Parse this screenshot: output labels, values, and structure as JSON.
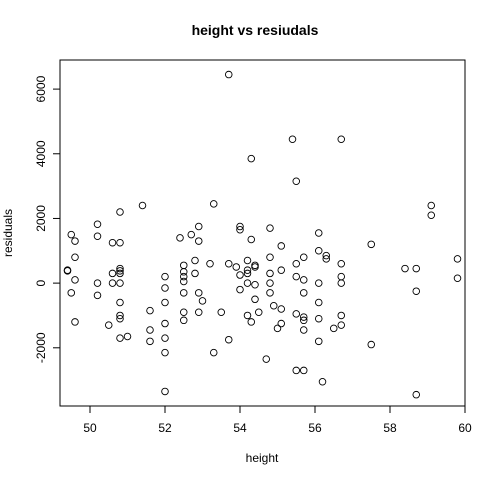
{
  "chart_data": {
    "type": "scatter",
    "title": "height  vs resiudals",
    "xlabel": "height",
    "ylabel": "residuals",
    "xlim": [
      49.2,
      60.0
    ],
    "ylim": [
      -3800,
      6900
    ],
    "xticks": [
      50,
      52,
      54,
      56,
      58,
      60
    ],
    "yticks": [
      -2000,
      0,
      2000,
      4000,
      6000
    ],
    "xtick_labels": [
      "50",
      "52",
      "54",
      "56",
      "58",
      "60"
    ],
    "ytick_labels": [
      "-2000",
      "0",
      "2000",
      "4000",
      "6000"
    ],
    "grid": false,
    "legend": "none",
    "series": [
      {
        "marker": "open-circle",
        "points": [
          [
            49.4,
            400
          ],
          [
            49.4,
            380
          ],
          [
            49.5,
            1500
          ],
          [
            49.5,
            -300
          ],
          [
            49.6,
            1300
          ],
          [
            49.6,
            -1200
          ],
          [
            49.6,
            800
          ],
          [
            49.6,
            100
          ],
          [
            50.2,
            1820
          ],
          [
            50.2,
            1450
          ],
          [
            50.2,
            0
          ],
          [
            50.2,
            -380
          ],
          [
            50.5,
            -1300
          ],
          [
            50.6,
            1250
          ],
          [
            50.6,
            300
          ],
          [
            50.6,
            0
          ],
          [
            50.8,
            2200
          ],
          [
            50.8,
            1250
          ],
          [
            50.8,
            450
          ],
          [
            50.8,
            380
          ],
          [
            50.8,
            300
          ],
          [
            50.8,
            0
          ],
          [
            50.8,
            -600
          ],
          [
            50.8,
            -1000
          ],
          [
            50.8,
            -1100
          ],
          [
            50.8,
            -1700
          ],
          [
            51.0,
            -1650
          ],
          [
            51.4,
            2400
          ],
          [
            51.6,
            -850
          ],
          [
            51.6,
            -1450
          ],
          [
            51.6,
            -1800
          ],
          [
            52.0,
            200
          ],
          [
            52.0,
            -150
          ],
          [
            52.0,
            -600
          ],
          [
            52.0,
            -1250
          ],
          [
            52.0,
            -1700
          ],
          [
            52.0,
            -2150
          ],
          [
            52.0,
            -3350
          ],
          [
            52.4,
            1400
          ],
          [
            52.5,
            550
          ],
          [
            52.5,
            350
          ],
          [
            52.5,
            200
          ],
          [
            52.5,
            50
          ],
          [
            52.5,
            -300
          ],
          [
            52.5,
            -900
          ],
          [
            52.5,
            -1150
          ],
          [
            52.7,
            1500
          ],
          [
            52.8,
            700
          ],
          [
            52.8,
            300
          ],
          [
            52.9,
            1300
          ],
          [
            52.9,
            1750
          ],
          [
            52.9,
            -300
          ],
          [
            52.9,
            -900
          ],
          [
            53.0,
            -550
          ],
          [
            53.2,
            600
          ],
          [
            53.3,
            2450
          ],
          [
            53.3,
            -2150
          ],
          [
            53.5,
            -900
          ],
          [
            53.7,
            6450
          ],
          [
            53.7,
            600
          ],
          [
            53.7,
            -1750
          ],
          [
            53.9,
            500
          ],
          [
            54.0,
            1750
          ],
          [
            54.0,
            1650
          ],
          [
            54.0,
            250
          ],
          [
            54.0,
            -200
          ],
          [
            54.2,
            700
          ],
          [
            54.2,
            400
          ],
          [
            54.2,
            300
          ],
          [
            54.2,
            0
          ],
          [
            54.2,
            -1000
          ],
          [
            54.3,
            1350
          ],
          [
            54.3,
            3850
          ],
          [
            54.3,
            -1200
          ],
          [
            54.4,
            550
          ],
          [
            54.4,
            500
          ],
          [
            54.4,
            -50
          ],
          [
            54.4,
            -500
          ],
          [
            54.5,
            -900
          ],
          [
            54.7,
            -2350
          ],
          [
            54.8,
            1700
          ],
          [
            54.8,
            800
          ],
          [
            54.8,
            300
          ],
          [
            54.8,
            0
          ],
          [
            54.8,
            -300
          ],
          [
            54.9,
            -700
          ],
          [
            55.0,
            -1400
          ],
          [
            55.1,
            1150
          ],
          [
            55.1,
            400
          ],
          [
            55.1,
            -800
          ],
          [
            55.1,
            -1250
          ],
          [
            55.4,
            4450
          ],
          [
            55.5,
            3150
          ],
          [
            55.5,
            600
          ],
          [
            55.5,
            200
          ],
          [
            55.5,
            -950
          ],
          [
            55.5,
            -2700
          ],
          [
            55.7,
            800
          ],
          [
            55.7,
            100
          ],
          [
            55.7,
            -300
          ],
          [
            55.7,
            -1050
          ],
          [
            55.7,
            -1150
          ],
          [
            55.7,
            -1450
          ],
          [
            55.7,
            -2700
          ],
          [
            56.1,
            1550
          ],
          [
            56.1,
            1000
          ],
          [
            56.1,
            0
          ],
          [
            56.1,
            -600
          ],
          [
            56.1,
            -1100
          ],
          [
            56.1,
            -1800
          ],
          [
            56.2,
            -3050
          ],
          [
            56.3,
            850
          ],
          [
            56.3,
            750
          ],
          [
            56.5,
            -1400
          ],
          [
            56.7,
            4450
          ],
          [
            56.7,
            600
          ],
          [
            56.7,
            200
          ],
          [
            56.7,
            0
          ],
          [
            56.7,
            -1000
          ],
          [
            56.7,
            -1300
          ],
          [
            57.5,
            1200
          ],
          [
            57.5,
            -1900
          ],
          [
            58.4,
            450
          ],
          [
            58.7,
            450
          ],
          [
            58.7,
            -250
          ],
          [
            58.7,
            -3450
          ],
          [
            59.1,
            2400
          ],
          [
            59.1,
            2100
          ],
          [
            59.8,
            750
          ],
          [
            59.8,
            150
          ]
        ]
      }
    ]
  }
}
